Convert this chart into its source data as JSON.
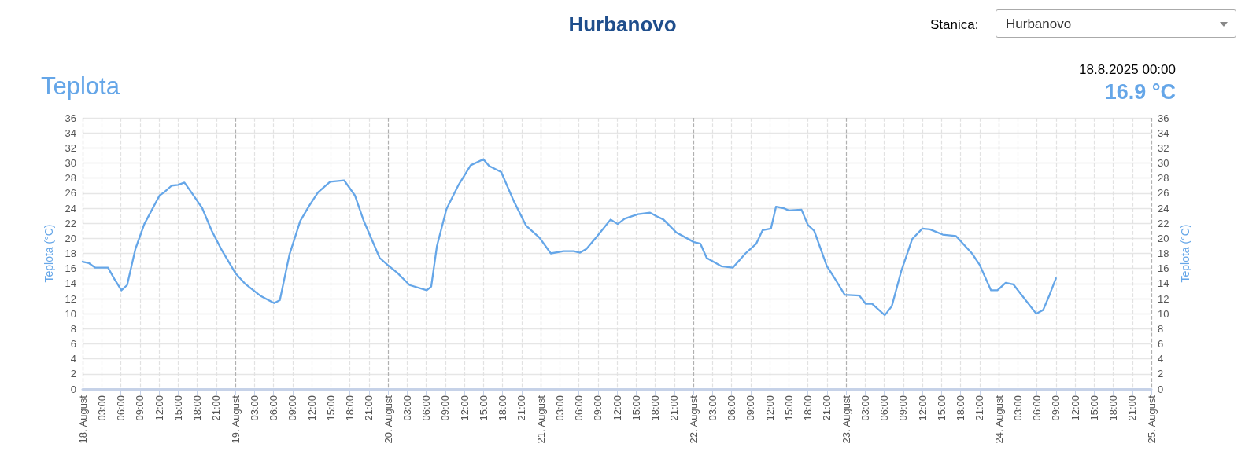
{
  "chart_data": {
    "type": "line",
    "title": "Hurbanovo",
    "subtitle": "Teplota",
    "ylabel": "Teplota (°C)",
    "y2label": "Teplota (°C)",
    "annotations": [
      "Stanica:",
      "Hurbanovo",
      "18.8.2025 00:00",
      "16.9 °C"
    ],
    "x": [
      "2025-08-18T00:00",
      "2025-08-18T01:00",
      "2025-08-18T02:00",
      "2025-08-18T04:00",
      "2025-08-18T05:00",
      "2025-08-18T06:06",
      "2025-08-18T07:00",
      "2025-08-18T08:18",
      "2025-08-18T09:42",
      "2025-08-18T12:06",
      "2025-08-18T12:48",
      "2025-08-18T14:00",
      "2025-08-18T15:00",
      "2025-08-18T16:00",
      "2025-08-18T17:06",
      "2025-08-18T18:48",
      "2025-08-18T20:18",
      "2025-08-18T21:54",
      "2025-08-19T00:00",
      "2025-08-19T01:30",
      "2025-08-19T03:54",
      "2025-08-19T06:06",
      "2025-08-19T07:00",
      "2025-08-19T08:30",
      "2025-08-19T10:12",
      "2025-08-19T11:36",
      "2025-08-19T13:00",
      "2025-08-19T14:54",
      "2025-08-19T17:06",
      "2025-08-19T18:48",
      "2025-08-19T20:12",
      "2025-08-19T22:42",
      "2025-08-19T23:54",
      "2025-08-20T01:30",
      "2025-08-20T03:24",
      "2025-08-20T06:06",
      "2025-08-20T06:48",
      "2025-08-20T07:42",
      "2025-08-20T09:12",
      "2025-08-20T11:06",
      "2025-08-20T13:00",
      "2025-08-20T15:00",
      "2025-08-20T15:54",
      "2025-08-20T17:48",
      "2025-08-20T19:48",
      "2025-08-20T21:42",
      "2025-08-20T23:48",
      "2025-08-21T01:36",
      "2025-08-21T03:36",
      "2025-08-21T05:12",
      "2025-08-21T06:12",
      "2025-08-21T07:12",
      "2025-08-21T08:54",
      "2025-08-21T11:00",
      "2025-08-21T12:06",
      "2025-08-21T13:12",
      "2025-08-21T15:18",
      "2025-08-21T17:12",
      "2025-08-21T18:18",
      "2025-08-21T19:18",
      "2025-08-21T21:18",
      "2025-08-21T22:48",
      "2025-08-22T00:06",
      "2025-08-22T01:06",
      "2025-08-22T02:06",
      "2025-08-22T04:24",
      "2025-08-22T06:12",
      "2025-08-22T08:12",
      "2025-08-22T09:54",
      "2025-08-22T10:54",
      "2025-08-22T12:12",
      "2025-08-22T13:00",
      "2025-08-22T14:12",
      "2025-08-22T15:00",
      "2025-08-22T17:00",
      "2025-08-22T18:00",
      "2025-08-22T19:00",
      "2025-08-22T21:00",
      "2025-08-22T22:00",
      "2025-08-22T23:48",
      "2025-08-23T02:06",
      "2025-08-23T03:06",
      "2025-08-23T04:06",
      "2025-08-23T06:06",
      "2025-08-23T07:12",
      "2025-08-23T08:42",
      "2025-08-23T10:24",
      "2025-08-23T12:00",
      "2025-08-23T13:12",
      "2025-08-23T15:12",
      "2025-08-23T17:18",
      "2025-08-23T19:48",
      "2025-08-23T21:00",
      "2025-08-23T22:48",
      "2025-08-23T23:48",
      "2025-08-24T01:06",
      "2025-08-24T02:18",
      "2025-08-24T03:24",
      "2025-08-24T05:54",
      "2025-08-24T07:00",
      "2025-08-24T08:00",
      "2025-08-24T09:00"
    ],
    "series": [
      {
        "color": "#65a6e8",
        "values": [
          16.9,
          16.7,
          16.1,
          16.1,
          14.6,
          13.1,
          13.8,
          18.6,
          21.9,
          25.7,
          26.1,
          27.0,
          27.1,
          27.4,
          26.1,
          24.0,
          21.0,
          18.4,
          15.4,
          14.0,
          12.4,
          11.4,
          11.8,
          17.8,
          22.3,
          24.3,
          26.1,
          27.5,
          27.7,
          25.7,
          22.3,
          17.4,
          16.5,
          15.4,
          13.8,
          13.1,
          13.6,
          19.0,
          23.9,
          27.1,
          29.7,
          30.5,
          29.6,
          28.8,
          24.9,
          21.7,
          20.1,
          18.0,
          18.3,
          18.3,
          18.1,
          18.6,
          20.3,
          22.5,
          21.9,
          22.6,
          23.2,
          23.4,
          22.9,
          22.5,
          20.8,
          20.1,
          19.5,
          19.3,
          17.4,
          16.3,
          16.1,
          18.0,
          19.3,
          21.1,
          21.3,
          24.2,
          24.0,
          23.7,
          23.8,
          21.8,
          21.0,
          16.3,
          15.0,
          12.5,
          12.4,
          11.3,
          11.3,
          9.8,
          11.0,
          15.7,
          19.9,
          21.3,
          21.2,
          20.5,
          20.3,
          18.0,
          16.5,
          13.1,
          13.1,
          14.1,
          13.9,
          12.7,
          10.0,
          10.5,
          12.5,
          14.7
        ]
      }
    ],
    "xlim": [
      "2025-08-18T00:00",
      "2025-08-25T00:00"
    ],
    "xticks": [
      {
        "value": "2025-08-18T00:00",
        "label": "18. August"
      },
      {
        "value": "2025-08-18T03:00",
        "label": "03:00"
      },
      {
        "value": "2025-08-18T06:00",
        "label": "06:00"
      },
      {
        "value": "2025-08-18T09:00",
        "label": "09:00"
      },
      {
        "value": "2025-08-18T12:00",
        "label": "12:00"
      },
      {
        "value": "2025-08-18T15:00",
        "label": "15:00"
      },
      {
        "value": "2025-08-18T18:00",
        "label": "18:00"
      },
      {
        "value": "2025-08-18T21:00",
        "label": "21:00"
      },
      {
        "value": "2025-08-19T00:00",
        "label": "19. August"
      },
      {
        "value": "2025-08-19T03:00",
        "label": "03:00"
      },
      {
        "value": "2025-08-19T06:00",
        "label": "06:00"
      },
      {
        "value": "2025-08-19T09:00",
        "label": "09:00"
      },
      {
        "value": "2025-08-19T12:00",
        "label": "12:00"
      },
      {
        "value": "2025-08-19T15:00",
        "label": "15:00"
      },
      {
        "value": "2025-08-19T18:00",
        "label": "18:00"
      },
      {
        "value": "2025-08-19T21:00",
        "label": "21:00"
      },
      {
        "value": "2025-08-20T00:00",
        "label": "20. August"
      },
      {
        "value": "2025-08-20T03:00",
        "label": "03:00"
      },
      {
        "value": "2025-08-20T06:00",
        "label": "06:00"
      },
      {
        "value": "2025-08-20T09:00",
        "label": "09:00"
      },
      {
        "value": "2025-08-20T12:00",
        "label": "12:00"
      },
      {
        "value": "2025-08-20T15:00",
        "label": "15:00"
      },
      {
        "value": "2025-08-20T18:00",
        "label": "18:00"
      },
      {
        "value": "2025-08-20T21:00",
        "label": "21:00"
      },
      {
        "value": "2025-08-21T00:00",
        "label": "21. August"
      },
      {
        "value": "2025-08-21T03:00",
        "label": "03:00"
      },
      {
        "value": "2025-08-21T06:00",
        "label": "06:00"
      },
      {
        "value": "2025-08-21T09:00",
        "label": "09:00"
      },
      {
        "value": "2025-08-21T12:00",
        "label": "12:00"
      },
      {
        "value": "2025-08-21T15:00",
        "label": "15:00"
      },
      {
        "value": "2025-08-21T18:00",
        "label": "18:00"
      },
      {
        "value": "2025-08-21T21:00",
        "label": "21:00"
      },
      {
        "value": "2025-08-22T00:00",
        "label": "22. August"
      },
      {
        "value": "2025-08-22T03:00",
        "label": "03:00"
      },
      {
        "value": "2025-08-22T06:00",
        "label": "06:00"
      },
      {
        "value": "2025-08-22T09:00",
        "label": "09:00"
      },
      {
        "value": "2025-08-22T12:00",
        "label": "12:00"
      },
      {
        "value": "2025-08-22T15:00",
        "label": "15:00"
      },
      {
        "value": "2025-08-22T18:00",
        "label": "18:00"
      },
      {
        "value": "2025-08-22T21:00",
        "label": "21:00"
      },
      {
        "value": "2025-08-23T00:00",
        "label": "23. August"
      },
      {
        "value": "2025-08-23T03:00",
        "label": "03:00"
      },
      {
        "value": "2025-08-23T06:00",
        "label": "06:00"
      },
      {
        "value": "2025-08-23T09:00",
        "label": "09:00"
      },
      {
        "value": "2025-08-23T12:00",
        "label": "12:00"
      },
      {
        "value": "2025-08-23T15:00",
        "label": "15:00"
      },
      {
        "value": "2025-08-23T18:00",
        "label": "18:00"
      },
      {
        "value": "2025-08-23T21:00",
        "label": "21:00"
      },
      {
        "value": "2025-08-24T00:00",
        "label": "24. August"
      },
      {
        "value": "2025-08-24T03:00",
        "label": "03:00"
      },
      {
        "value": "2025-08-24T06:00",
        "label": "06:00"
      },
      {
        "value": "2025-08-24T09:00",
        "label": "09:00"
      },
      {
        "value": "2025-08-24T12:00",
        "label": "12:00"
      },
      {
        "value": "2025-08-24T15:00",
        "label": "15:00"
      },
      {
        "value": "2025-08-24T18:00",
        "label": "18:00"
      },
      {
        "value": "2025-08-24T21:00",
        "label": "21:00"
      },
      {
        "value": "2025-08-25T00:00",
        "label": "25. August"
      }
    ],
    "ylim": [
      0,
      36
    ],
    "yticks": [
      0,
      2,
      4,
      6,
      8,
      10,
      12,
      14,
      16,
      18,
      20,
      22,
      24,
      26,
      28,
      30,
      32,
      34,
      36
    ],
    "y2lim": [
      0,
      36
    ],
    "y2ticks": [
      0,
      2,
      4,
      6,
      8,
      10,
      12,
      14,
      16,
      18,
      20,
      22,
      24,
      26,
      28,
      30,
      32,
      34,
      36
    ],
    "grid": true,
    "marker": "none",
    "line_style": "solid"
  }
}
